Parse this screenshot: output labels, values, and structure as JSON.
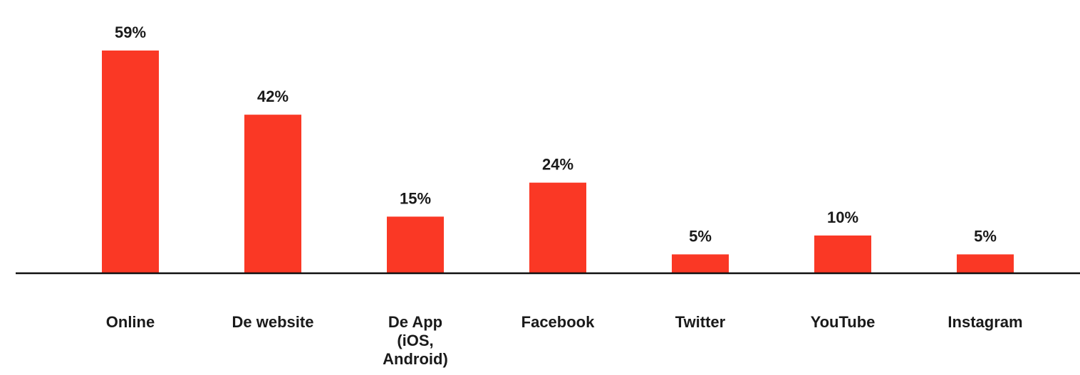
{
  "chart_data": {
    "type": "bar",
    "title": "",
    "xlabel": "",
    "ylabel": "",
    "ylim": [
      0,
      59
    ],
    "grid": false,
    "legend": "none",
    "categories": [
      [
        "Online"
      ],
      [
        "De website"
      ],
      [
        "De App",
        "(iOS,",
        "Android)"
      ],
      [
        "Facebook"
      ],
      [
        "Twitter"
      ],
      [
        "YouTube"
      ],
      [
        "Instagram"
      ]
    ],
    "values": [
      59,
      42,
      15,
      24,
      5,
      10,
      5
    ],
    "value_labels": [
      "59%",
      "42%",
      "15%",
      "24%",
      "5%",
      "10%",
      "5%"
    ],
    "colors": {
      "bar": "#fa3825",
      "axis": "#111111",
      "text": "#1a1a1a"
    }
  }
}
